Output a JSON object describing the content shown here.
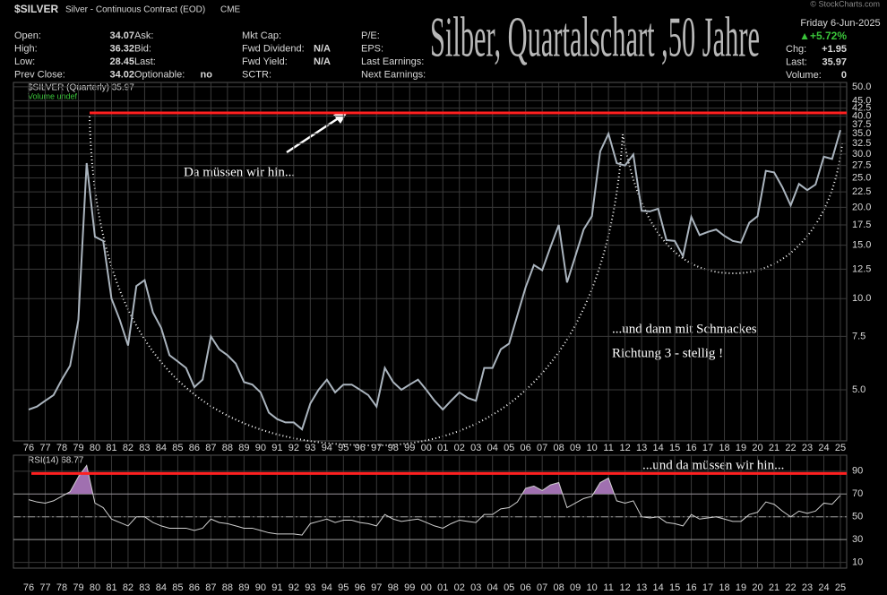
{
  "header": {
    "symbol": "$SILVER",
    "description": "Silver - Continuous Contract (EOD)",
    "exchange": "CME",
    "col1": [
      [
        "Open:",
        "34.07"
      ],
      [
        "High:",
        "36.32"
      ],
      [
        "Low:",
        "28.45"
      ],
      [
        "Prev Close:",
        "34.02"
      ]
    ],
    "col2": [
      [
        "Ask:",
        ""
      ],
      [
        "Bid:",
        ""
      ],
      [
        "Last:",
        ""
      ],
      [
        "Optionable:",
        "no"
      ]
    ],
    "col3": [
      [
        "Mkt Cap:",
        ""
      ],
      [
        "Fwd Dividend:",
        "N/A"
      ],
      [
        "Fwd Yield:",
        "N/A"
      ],
      [
        "SCTR:",
        ""
      ]
    ],
    "col4": [
      [
        "P/E:",
        ""
      ],
      [
        "EPS:",
        ""
      ],
      [
        "Last Earnings:",
        ""
      ],
      [
        "Next Earnings:",
        ""
      ]
    ],
    "date": "Friday  6-Jun-2025",
    "change_pct": "▲+5.72%",
    "col5": [
      [
        "Chg:",
        "+1.95"
      ],
      [
        "Last:",
        "35.97"
      ],
      [
        "Volume:",
        "0"
      ]
    ],
    "copyright": "© StockCharts.com"
  },
  "chart_data": {
    "type": "line",
    "title": "Silber, Quartalschart ,50 Jahre",
    "legend": "$SILVER (Quarterly) 35.97",
    "volume_legend": "Volume undef",
    "log_scale": true,
    "grid": true,
    "x": [
      1976,
      1976.5,
      1977,
      1977.5,
      1978,
      1978.5,
      1979,
      1979.5,
      1980,
      1980.5,
      1981,
      1981.5,
      1982,
      1982.5,
      1983,
      1983.5,
      1984,
      1984.5,
      1985,
      1985.5,
      1986,
      1986.5,
      1987,
      1987.5,
      1988,
      1988.5,
      1989,
      1989.5,
      1990,
      1990.5,
      1991,
      1991.5,
      1992,
      1992.5,
      1993,
      1993.5,
      1994,
      1994.5,
      1995,
      1995.5,
      1996,
      1996.5,
      1997,
      1997.5,
      1998,
      1998.5,
      1999,
      1999.5,
      2000,
      2000.5,
      2001,
      2001.5,
      2002,
      2002.5,
      2003,
      2003.5,
      2004,
      2004.5,
      2005,
      2005.5,
      2006,
      2006.5,
      2007,
      2007.5,
      2008,
      2008.5,
      2009,
      2009.5,
      2010,
      2010.5,
      2011,
      2011.5,
      2012,
      2012.5,
      2013,
      2013.5,
      2014,
      2014.5,
      2015,
      2015.5,
      2016,
      2016.5,
      2017,
      2017.5,
      2018,
      2018.5,
      2019,
      2019.5,
      2020,
      2020.5,
      2021,
      2021.5,
      2022,
      2022.5,
      2023,
      2023.5,
      2024,
      2024.5,
      2025
    ],
    "series": [
      {
        "name": "$SILVER",
        "color": "#aab4be",
        "values": [
          4.3,
          4.4,
          4.6,
          4.8,
          5.4,
          6.0,
          8.5,
          28,
          16,
          15.5,
          10,
          8.5,
          7,
          11,
          11.5,
          9,
          8,
          6.5,
          6.2,
          5.9,
          5.1,
          5.4,
          7.5,
          6.8,
          6.5,
          6.1,
          5.3,
          5.2,
          4.9,
          4.2,
          4.0,
          3.9,
          3.9,
          3.7,
          4.5,
          5.0,
          5.4,
          4.9,
          5.2,
          5.2,
          5.0,
          4.8,
          4.4,
          5.9,
          5.3,
          5.0,
          5.2,
          5.4,
          5.0,
          4.6,
          4.3,
          4.6,
          4.9,
          4.7,
          4.6,
          5.9,
          5.9,
          6.8,
          7.1,
          8.8,
          10.9,
          12.9,
          12.4,
          14.8,
          17.5,
          11.3,
          13.8,
          16.9,
          18.7,
          30.6,
          35,
          28,
          27.5,
          29.9,
          19.5,
          19.4,
          19.8,
          15.6,
          15.5,
          13.8,
          18.6,
          16.2,
          16.6,
          16.9,
          16.1,
          15.5,
          15.3,
          17.8,
          18.7,
          26.4,
          26.1,
          23.3,
          20.3,
          23.9,
          22.8,
          23.8,
          29.4,
          28.9,
          35.97
        ]
      }
    ],
    "resistance": 41,
    "resistance_color": "#ff2020",
    "ylim": [
      3.39,
      51.7
    ],
    "yticks": [
      {
        "value": 5,
        "label": "5.0"
      },
      {
        "value": 7.5,
        "label": "7.5"
      },
      {
        "value": 10,
        "label": "10.0"
      },
      {
        "value": 12.5,
        "label": "12.5"
      },
      {
        "value": 15,
        "label": "15.0"
      },
      {
        "value": 17.5,
        "label": "17.5"
      },
      {
        "value": 20,
        "label": "20.0"
      },
      {
        "value": 22.5,
        "label": "22.5"
      },
      {
        "value": 25,
        "label": "25.0"
      },
      {
        "value": 27.5,
        "label": "27.5"
      },
      {
        "value": 30,
        "label": "30.0"
      },
      {
        "value": 32.5,
        "label": "32.5"
      },
      {
        "value": 35,
        "label": "35.0"
      },
      {
        "value": 37.5,
        "label": "37.5"
      },
      {
        "value": 40,
        "label": "40.0"
      },
      {
        "value": 42.5,
        "label": "42.5"
      },
      {
        "value": 45,
        "label": "45.0"
      },
      {
        "value": 50,
        "label": "50.0"
      }
    ],
    "xlim": [
      1975.08,
      2025.38
    ],
    "xticks": [
      {
        "value": 1976,
        "label": "76"
      },
      {
        "value": 1977,
        "label": "77"
      },
      {
        "value": 1978,
        "label": "78"
      },
      {
        "value": 1979,
        "label": "79"
      },
      {
        "value": 1980,
        "label": "80"
      },
      {
        "value": 1981,
        "label": "81"
      },
      {
        "value": 1982,
        "label": "82"
      },
      {
        "value": 1983,
        "label": "83"
      },
      {
        "value": 1984,
        "label": "84"
      },
      {
        "value": 1985,
        "label": "85"
      },
      {
        "value": 1986,
        "label": "86"
      },
      {
        "value": 1987,
        "label": "87"
      },
      {
        "value": 1988,
        "label": "88"
      },
      {
        "value": 1989,
        "label": "89"
      },
      {
        "value": 1990,
        "label": "90"
      },
      {
        "value": 1991,
        "label": "91"
      },
      {
        "value": 1992,
        "label": "92"
      },
      {
        "value": 1993,
        "label": "93"
      },
      {
        "value": 1994,
        "label": "94"
      },
      {
        "value": 1995,
        "label": "95"
      },
      {
        "value": 1996,
        "label": "96"
      },
      {
        "value": 1997,
        "label": "97"
      },
      {
        "value": 1998,
        "label": "98"
      },
      {
        "value": 1999,
        "label": "99"
      },
      {
        "value": 2000,
        "label": "00"
      },
      {
        "value": 2001,
        "label": "01"
      },
      {
        "value": 2002,
        "label": "02"
      },
      {
        "value": 2003,
        "label": "03"
      },
      {
        "value": 2004,
        "label": "04"
      },
      {
        "value": 2005,
        "label": "05"
      },
      {
        "value": 2006,
        "label": "06"
      },
      {
        "value": 2007,
        "label": "07"
      },
      {
        "value": 2008,
        "label": "08"
      },
      {
        "value": 2009,
        "label": "09"
      },
      {
        "value": 2010,
        "label": "10"
      },
      {
        "value": 2011,
        "label": "11"
      },
      {
        "value": 2012,
        "label": "12"
      },
      {
        "value": 2013,
        "label": "13"
      },
      {
        "value": 2014,
        "label": "14"
      },
      {
        "value": 2015,
        "label": "15"
      },
      {
        "value": 2016,
        "label": "16"
      },
      {
        "value": 2017,
        "label": "17"
      },
      {
        "value": 2018,
        "label": "18"
      },
      {
        "value": 2019,
        "label": "19"
      },
      {
        "value": 2020,
        "label": "20"
      },
      {
        "value": 2021,
        "label": "21"
      },
      {
        "value": 2022,
        "label": "22"
      },
      {
        "value": 2023,
        "label": "23"
      },
      {
        "value": 2024,
        "label": "24"
      },
      {
        "value": 2025,
        "label": "25"
      }
    ],
    "annotations": [
      "Da müssen wir hin...",
      "...und dann mit Schmackes",
      "Richtung 3 - stellig !",
      "...und da müssen wir hin..."
    ],
    "rsi": {
      "legend": "RSI(14) 68.77",
      "color": "#d0d0d0",
      "fill": "#a070b0",
      "overbought": 70,
      "oversold": 30,
      "resistance": 88,
      "values": [
        65,
        63,
        62,
        64,
        68,
        72,
        85,
        95,
        62,
        58,
        48,
        45,
        42,
        50,
        50,
        45,
        42,
        40,
        40,
        40,
        38,
        40,
        48,
        45,
        44,
        42,
        40,
        40,
        38,
        36,
        35,
        35,
        35,
        34,
        44,
        46,
        48,
        45,
        47,
        47,
        45,
        44,
        42,
        52,
        48,
        46,
        47,
        48,
        45,
        42,
        40,
        44,
        47,
        46,
        45,
        52,
        52,
        57,
        58,
        63,
        75,
        77,
        73,
        78,
        80,
        58,
        62,
        66,
        68,
        80,
        84,
        64,
        62,
        64,
        50,
        49,
        50,
        45,
        44,
        42,
        52,
        48,
        49,
        50,
        48,
        46,
        46,
        52,
        54,
        63,
        61,
        55,
        50,
        55,
        53,
        55,
        62,
        61,
        68.77
      ],
      "ylim": [
        5,
        104
      ],
      "yticks": [
        10,
        30,
        50,
        70,
        90
      ]
    }
  }
}
